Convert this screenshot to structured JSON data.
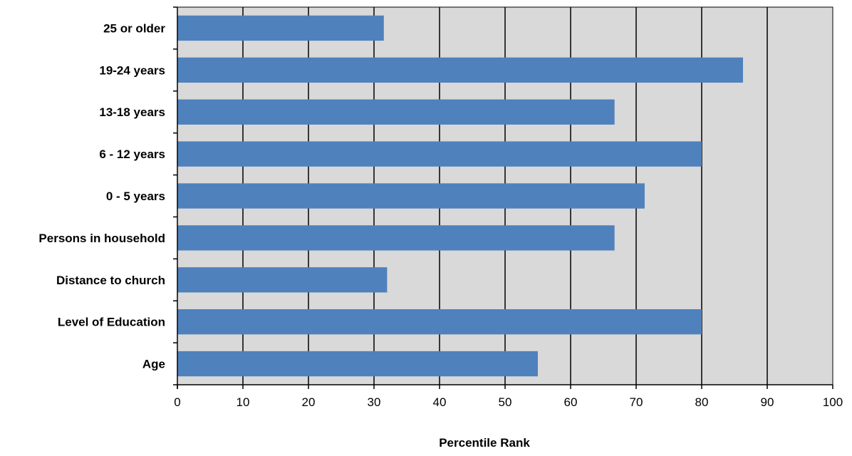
{
  "chart_data": {
    "type": "bar",
    "orientation": "horizontal",
    "title": "",
    "xlabel": "Percentile Rank",
    "ylabel": "",
    "xlim": [
      0,
      100
    ],
    "x_ticks": [
      0,
      10,
      20,
      30,
      40,
      50,
      60,
      70,
      80,
      90,
      100
    ],
    "grid": true,
    "legend": "none",
    "categories": [
      "25 or older",
      "19-24 years",
      "13-18 years",
      "6 - 12 years",
      "0 - 5 years",
      "Persons in household",
      "Distance to church",
      "Level of Education",
      "Age"
    ],
    "values": [
      31.5,
      86.3,
      66.7,
      80.0,
      71.3,
      66.7,
      32.0,
      80.0,
      55.0
    ],
    "colors": {
      "bar": "#4f81bd",
      "plot_background": "#d9d9d9",
      "gridline": "#000000"
    }
  }
}
